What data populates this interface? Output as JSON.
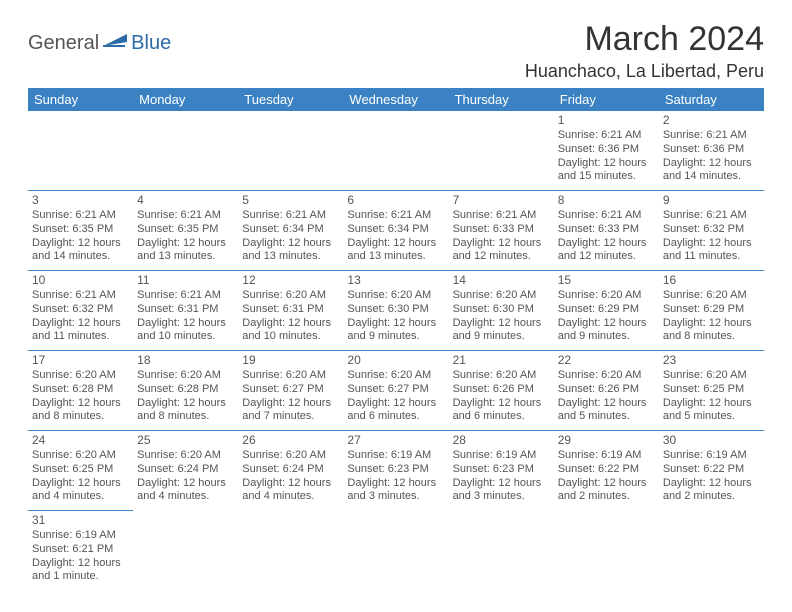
{
  "logo": {
    "part1": "General",
    "part2": "Blue"
  },
  "title": "March 2024",
  "location": "Huanchaco, La Libertad, Peru",
  "colors": {
    "header_bg": "#3b82c4",
    "border": "#3b82c4",
    "logo_blue": "#2c6aa8"
  },
  "daysOfWeek": [
    "Sunday",
    "Monday",
    "Tuesday",
    "Wednesday",
    "Thursday",
    "Friday",
    "Saturday"
  ],
  "weeks": [
    [
      null,
      null,
      null,
      null,
      null,
      {
        "n": "1",
        "sr": "6:21 AM",
        "ss": "6:36 PM",
        "dl": "12 hours and 15 minutes."
      },
      {
        "n": "2",
        "sr": "6:21 AM",
        "ss": "6:36 PM",
        "dl": "12 hours and 14 minutes."
      }
    ],
    [
      {
        "n": "3",
        "sr": "6:21 AM",
        "ss": "6:35 PM",
        "dl": "12 hours and 14 minutes."
      },
      {
        "n": "4",
        "sr": "6:21 AM",
        "ss": "6:35 PM",
        "dl": "12 hours and 13 minutes."
      },
      {
        "n": "5",
        "sr": "6:21 AM",
        "ss": "6:34 PM",
        "dl": "12 hours and 13 minutes."
      },
      {
        "n": "6",
        "sr": "6:21 AM",
        "ss": "6:34 PM",
        "dl": "12 hours and 13 minutes."
      },
      {
        "n": "7",
        "sr": "6:21 AM",
        "ss": "6:33 PM",
        "dl": "12 hours and 12 minutes."
      },
      {
        "n": "8",
        "sr": "6:21 AM",
        "ss": "6:33 PM",
        "dl": "12 hours and 12 minutes."
      },
      {
        "n": "9",
        "sr": "6:21 AM",
        "ss": "6:32 PM",
        "dl": "12 hours and 11 minutes."
      }
    ],
    [
      {
        "n": "10",
        "sr": "6:21 AM",
        "ss": "6:32 PM",
        "dl": "12 hours and 11 minutes."
      },
      {
        "n": "11",
        "sr": "6:21 AM",
        "ss": "6:31 PM",
        "dl": "12 hours and 10 minutes."
      },
      {
        "n": "12",
        "sr": "6:20 AM",
        "ss": "6:31 PM",
        "dl": "12 hours and 10 minutes."
      },
      {
        "n": "13",
        "sr": "6:20 AM",
        "ss": "6:30 PM",
        "dl": "12 hours and 9 minutes."
      },
      {
        "n": "14",
        "sr": "6:20 AM",
        "ss": "6:30 PM",
        "dl": "12 hours and 9 minutes."
      },
      {
        "n": "15",
        "sr": "6:20 AM",
        "ss": "6:29 PM",
        "dl": "12 hours and 9 minutes."
      },
      {
        "n": "16",
        "sr": "6:20 AM",
        "ss": "6:29 PM",
        "dl": "12 hours and 8 minutes."
      }
    ],
    [
      {
        "n": "17",
        "sr": "6:20 AM",
        "ss": "6:28 PM",
        "dl": "12 hours and 8 minutes."
      },
      {
        "n": "18",
        "sr": "6:20 AM",
        "ss": "6:28 PM",
        "dl": "12 hours and 8 minutes."
      },
      {
        "n": "19",
        "sr": "6:20 AM",
        "ss": "6:27 PM",
        "dl": "12 hours and 7 minutes."
      },
      {
        "n": "20",
        "sr": "6:20 AM",
        "ss": "6:27 PM",
        "dl": "12 hours and 6 minutes."
      },
      {
        "n": "21",
        "sr": "6:20 AM",
        "ss": "6:26 PM",
        "dl": "12 hours and 6 minutes."
      },
      {
        "n": "22",
        "sr": "6:20 AM",
        "ss": "6:26 PM",
        "dl": "12 hours and 5 minutes."
      },
      {
        "n": "23",
        "sr": "6:20 AM",
        "ss": "6:25 PM",
        "dl": "12 hours and 5 minutes."
      }
    ],
    [
      {
        "n": "24",
        "sr": "6:20 AM",
        "ss": "6:25 PM",
        "dl": "12 hours and 4 minutes."
      },
      {
        "n": "25",
        "sr": "6:20 AM",
        "ss": "6:24 PM",
        "dl": "12 hours and 4 minutes."
      },
      {
        "n": "26",
        "sr": "6:20 AM",
        "ss": "6:24 PM",
        "dl": "12 hours and 4 minutes."
      },
      {
        "n": "27",
        "sr": "6:19 AM",
        "ss": "6:23 PM",
        "dl": "12 hours and 3 minutes."
      },
      {
        "n": "28",
        "sr": "6:19 AM",
        "ss": "6:23 PM",
        "dl": "12 hours and 3 minutes."
      },
      {
        "n": "29",
        "sr": "6:19 AM",
        "ss": "6:22 PM",
        "dl": "12 hours and 2 minutes."
      },
      {
        "n": "30",
        "sr": "6:19 AM",
        "ss": "6:22 PM",
        "dl": "12 hours and 2 minutes."
      }
    ],
    [
      {
        "n": "31",
        "sr": "6:19 AM",
        "ss": "6:21 PM",
        "dl": "12 hours and 1 minute."
      },
      null,
      null,
      null,
      null,
      null,
      null
    ]
  ],
  "labels": {
    "sunrise": "Sunrise: ",
    "sunset": "Sunset: ",
    "daylight": "Daylight: "
  }
}
